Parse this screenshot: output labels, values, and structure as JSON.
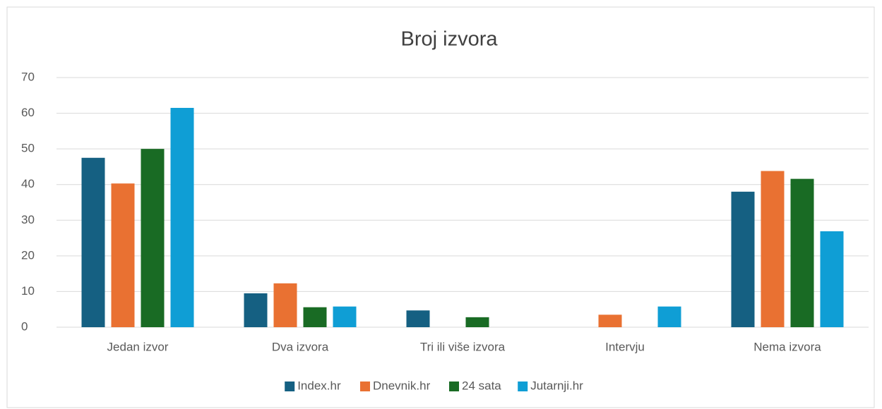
{
  "chart_data": {
    "type": "bar",
    "title": "Broj izvora",
    "categories": [
      "Jedan izvor",
      "Dva izvora",
      "Tri ili više izvora",
      "Intervju",
      "Nema izvora"
    ],
    "series": [
      {
        "name": "Index.hr",
        "color": "#156082",
        "values": [
          47.5,
          9.5,
          4.7,
          0,
          38
        ]
      },
      {
        "name": "Dnevnik.hr",
        "color": "#e97132",
        "values": [
          40.3,
          12.3,
          0,
          3.5,
          43.8
        ]
      },
      {
        "name": "24 sata",
        "color": "#196b24",
        "values": [
          50,
          5.6,
          2.8,
          0,
          41.6
        ]
      },
      {
        "name": "Jutarnji.hr",
        "color": "#0f9ed5",
        "values": [
          61.5,
          5.8,
          0,
          5.8,
          26.9
        ]
      }
    ],
    "ylim": [
      0,
      70
    ],
    "yticks": [
      0,
      10,
      20,
      30,
      40,
      50,
      60,
      70
    ],
    "grid": true,
    "legend": "bottom"
  }
}
